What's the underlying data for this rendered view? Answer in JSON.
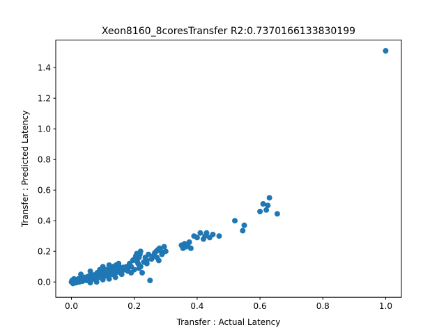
{
  "chart_data": {
    "type": "scatter",
    "title": "Xeon8160_8coresTransfer R2:0.7370166133830199",
    "xlabel": "Transfer : Actual Latency",
    "ylabel": "Transfer : Predicted Latency",
    "xlim": [
      -0.05,
      1.05
    ],
    "ylim": [
      -0.1,
      1.58
    ],
    "xticks": [
      "0.0",
      "0.2",
      "0.4",
      "0.6",
      "0.8",
      "1.0"
    ],
    "yticks": [
      "0.0",
      "0.2",
      "0.4",
      "0.6",
      "0.8",
      "1.0",
      "1.2",
      "1.4"
    ],
    "marker_color": "#1f77b4",
    "grid": false,
    "points": [
      [
        0.0,
        0.0
      ],
      [
        0.002,
        0.01
      ],
      [
        0.005,
        -0.01
      ],
      [
        0.008,
        0.02
      ],
      [
        0.01,
        0.0
      ],
      [
        0.012,
        0.015
      ],
      [
        0.015,
        -0.005
      ],
      [
        0.018,
        0.01
      ],
      [
        0.02,
        0.005
      ],
      [
        0.022,
        0.02
      ],
      [
        0.025,
        0.0
      ],
      [
        0.028,
        0.015
      ],
      [
        0.03,
        0.01
      ],
      [
        0.032,
        0.025
      ],
      [
        0.035,
        0.005
      ],
      [
        0.038,
        0.02
      ],
      [
        0.04,
        0.01
      ],
      [
        0.042,
        0.03
      ],
      [
        0.045,
        0.015
      ],
      [
        0.048,
        0.025
      ],
      [
        0.05,
        0.01
      ],
      [
        0.052,
        0.035
      ],
      [
        0.055,
        0.02
      ],
      [
        0.058,
        0.04
      ],
      [
        0.06,
        0.015
      ],
      [
        0.062,
        0.03
      ],
      [
        0.065,
        0.025
      ],
      [
        0.068,
        0.045
      ],
      [
        0.07,
        0.02
      ],
      [
        0.072,
        0.04
      ],
      [
        0.075,
        0.03
      ],
      [
        0.078,
        0.05
      ],
      [
        0.08,
        0.025
      ],
      [
        0.082,
        0.06
      ],
      [
        0.085,
        0.035
      ],
      [
        0.088,
        0.05
      ],
      [
        0.09,
        0.03
      ],
      [
        0.092,
        0.065
      ],
      [
        0.095,
        0.04
      ],
      [
        0.098,
        0.055
      ],
      [
        0.1,
        0.035
      ],
      [
        0.102,
        0.07
      ],
      [
        0.105,
        0.045
      ],
      [
        0.108,
        0.06
      ],
      [
        0.11,
        0.04
      ],
      [
        0.112,
        0.08
      ],
      [
        0.115,
        0.05
      ],
      [
        0.118,
        0.07
      ],
      [
        0.12,
        0.045
      ],
      [
        0.122,
        0.09
      ],
      [
        0.125,
        0.06
      ],
      [
        0.128,
        0.08
      ],
      [
        0.13,
        0.05
      ],
      [
        0.132,
        0.1
      ],
      [
        0.135,
        0.065
      ],
      [
        0.138,
        0.085
      ],
      [
        0.14,
        0.06
      ],
      [
        0.142,
        0.11
      ],
      [
        0.145,
        0.07
      ],
      [
        0.148,
        0.09
      ],
      [
        0.15,
        0.065
      ],
      [
        0.152,
        0.1
      ],
      [
        0.155,
        0.075
      ],
      [
        0.158,
        0.085
      ],
      [
        0.16,
        0.07
      ],
      [
        0.165,
        0.095
      ],
      [
        0.17,
        0.08
      ],
      [
        0.175,
        0.1
      ],
      [
        0.18,
        0.09
      ],
      [
        0.185,
        0.12
      ],
      [
        0.19,
        0.1
      ],
      [
        0.195,
        0.14
      ],
      [
        0.2,
        0.15
      ],
      [
        0.205,
        0.17
      ],
      [
        0.21,
        0.13
      ],
      [
        0.215,
        0.16
      ],
      [
        0.218,
        0.18
      ],
      [
        0.22,
        0.2
      ],
      [
        0.212,
        0.12
      ],
      [
        0.208,
        0.185
      ],
      [
        0.225,
        0.06
      ],
      [
        0.23,
        0.13
      ],
      [
        0.235,
        0.16
      ],
      [
        0.24,
        0.14
      ],
      [
        0.245,
        0.18
      ],
      [
        0.25,
        0.01
      ],
      [
        0.255,
        0.15
      ],
      [
        0.26,
        0.17
      ],
      [
        0.265,
        0.19
      ],
      [
        0.27,
        0.2
      ],
      [
        0.275,
        0.21
      ],
      [
        0.28,
        0.22
      ],
      [
        0.285,
        0.2
      ],
      [
        0.29,
        0.19
      ],
      [
        0.295,
        0.23
      ],
      [
        0.3,
        0.2
      ],
      [
        0.272,
        0.16
      ],
      [
        0.278,
        0.14
      ],
      [
        0.288,
        0.18
      ],
      [
        0.03,
        0.05
      ],
      [
        0.06,
        0.07
      ],
      [
        0.09,
        0.08
      ],
      [
        0.12,
        0.11
      ],
      [
        0.15,
        0.12
      ],
      [
        0.17,
        0.09
      ],
      [
        0.18,
        0.07
      ],
      [
        0.16,
        0.05
      ],
      [
        0.14,
        0.03
      ],
      [
        0.12,
        0.02
      ],
      [
        0.1,
        0.015
      ],
      [
        0.08,
        0.0
      ],
      [
        0.06,
        -0.005
      ],
      [
        0.2,
        0.08
      ],
      [
        0.19,
        0.06
      ],
      [
        0.22,
        0.1
      ],
      [
        0.215,
        0.09
      ],
      [
        0.24,
        0.12
      ],
      [
        0.1,
        0.1
      ],
      [
        0.11,
        0.075
      ],
      [
        0.13,
        0.09
      ],
      [
        0.35,
        0.24
      ],
      [
        0.355,
        0.22
      ],
      [
        0.36,
        0.25
      ],
      [
        0.365,
        0.23
      ],
      [
        0.37,
        0.24
      ],
      [
        0.375,
        0.26
      ],
      [
        0.38,
        0.22
      ],
      [
        0.39,
        0.3
      ],
      [
        0.4,
        0.29
      ],
      [
        0.41,
        0.32
      ],
      [
        0.42,
        0.28
      ],
      [
        0.425,
        0.3
      ],
      [
        0.43,
        0.32
      ],
      [
        0.44,
        0.29
      ],
      [
        0.45,
        0.31
      ],
      [
        0.47,
        0.3
      ],
      [
        0.52,
        0.4
      ],
      [
        0.545,
        0.335
      ],
      [
        0.55,
        0.37
      ],
      [
        0.6,
        0.46
      ],
      [
        0.61,
        0.51
      ],
      [
        0.62,
        0.47
      ],
      [
        0.625,
        0.5
      ],
      [
        0.63,
        0.55
      ],
      [
        0.655,
        0.445
      ],
      [
        1.0,
        1.51
      ]
    ]
  }
}
